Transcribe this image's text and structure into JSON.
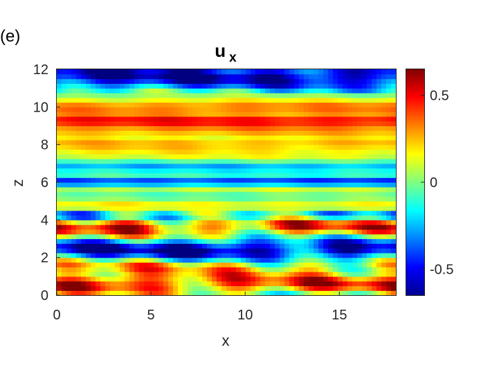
{
  "panel_label": "(e)",
  "chart_data": {
    "type": "heatmap",
    "title": "u",
    "title_subscript": "x",
    "xlabel": "x",
    "ylabel": "z",
    "xlim": [
      0,
      18
    ],
    "ylim": [
      0,
      12
    ],
    "xticks": [
      0,
      5,
      10,
      15
    ],
    "yticks": [
      0,
      2,
      4,
      6,
      8,
      10,
      12
    ],
    "colormap": "jet",
    "clim": [
      -0.65,
      0.65
    ],
    "colorbar_ticks": [
      {
        "value": 0.5,
        "label": "0.5"
      },
      {
        "value": 0,
        "label": "0"
      },
      {
        "value": -0.5,
        "label": "-0.5"
      }
    ],
    "z_profile": [
      {
        "z": 0.0,
        "u": 0.05
      },
      {
        "z": 0.25,
        "u": 0.2
      },
      {
        "z": 0.5,
        "u": 0.45
      },
      {
        "z": 0.75,
        "u": 0.35
      },
      {
        "z": 1.0,
        "u": 0.3
      },
      {
        "z": 1.25,
        "u": 0.15
      },
      {
        "z": 1.5,
        "u": 0.25
      },
      {
        "z": 1.75,
        "u": 0.05
      },
      {
        "z": 2.0,
        "u": -0.2
      },
      {
        "z": 2.25,
        "u": -0.5
      },
      {
        "z": 2.5,
        "u": -0.55
      },
      {
        "z": 2.75,
        "u": -0.4
      },
      {
        "z": 3.0,
        "u": -0.15
      },
      {
        "z": 3.25,
        "u": 0.15
      },
      {
        "z": 3.5,
        "u": 0.3
      },
      {
        "z": 3.75,
        "u": 0.35
      },
      {
        "z": 4.0,
        "u": 0.05
      },
      {
        "z": 4.25,
        "u": -0.35
      },
      {
        "z": 4.5,
        "u": 0.0
      },
      {
        "z": 4.75,
        "u": 0.2
      },
      {
        "z": 5.0,
        "u": 0.1
      },
      {
        "z": 5.25,
        "u": -0.1
      },
      {
        "z": 5.5,
        "u": 0.05
      },
      {
        "z": 5.75,
        "u": 0.1
      },
      {
        "z": 6.0,
        "u": -0.55
      },
      {
        "z": 6.25,
        "u": -0.25
      },
      {
        "z": 6.5,
        "u": 0.05
      },
      {
        "z": 6.75,
        "u": -0.35
      },
      {
        "z": 7.0,
        "u": -0.15
      },
      {
        "z": 7.25,
        "u": 0.05
      },
      {
        "z": 7.5,
        "u": 0.2
      },
      {
        "z": 7.75,
        "u": 0.15
      },
      {
        "z": 8.0,
        "u": 0.3
      },
      {
        "z": 8.25,
        "u": 0.2
      },
      {
        "z": 8.5,
        "u": 0.15
      },
      {
        "z": 8.75,
        "u": 0.35
      },
      {
        "z": 9.0,
        "u": 0.3
      },
      {
        "z": 9.25,
        "u": 0.6
      },
      {
        "z": 9.5,
        "u": 0.35
      },
      {
        "z": 9.75,
        "u": 0.25
      },
      {
        "z": 10.0,
        "u": 0.4
      },
      {
        "z": 10.25,
        "u": 0.2
      },
      {
        "z": 10.5,
        "u": 0.1
      },
      {
        "z": 10.75,
        "u": -0.05
      },
      {
        "z": 11.0,
        "u": -0.25
      },
      {
        "z": 11.25,
        "u": -0.45
      },
      {
        "z": 11.5,
        "u": -0.55
      },
      {
        "z": 11.75,
        "u": -0.6
      },
      {
        "z": 12.0,
        "u": -0.45
      }
    ],
    "features": [
      {
        "x": 3.5,
        "z": 3.8,
        "u": 0.55
      },
      {
        "x": 13.5,
        "z": 3.8,
        "u": 0.45
      },
      {
        "x": 8.5,
        "z": 2.6,
        "u": -0.65
      },
      {
        "x": 3.0,
        "z": 0.8,
        "u": 0.5
      },
      {
        "x": 16.0,
        "z": 2.3,
        "u": -0.6
      },
      {
        "x": 10.5,
        "z": 0.5,
        "u": 0.45
      }
    ]
  }
}
